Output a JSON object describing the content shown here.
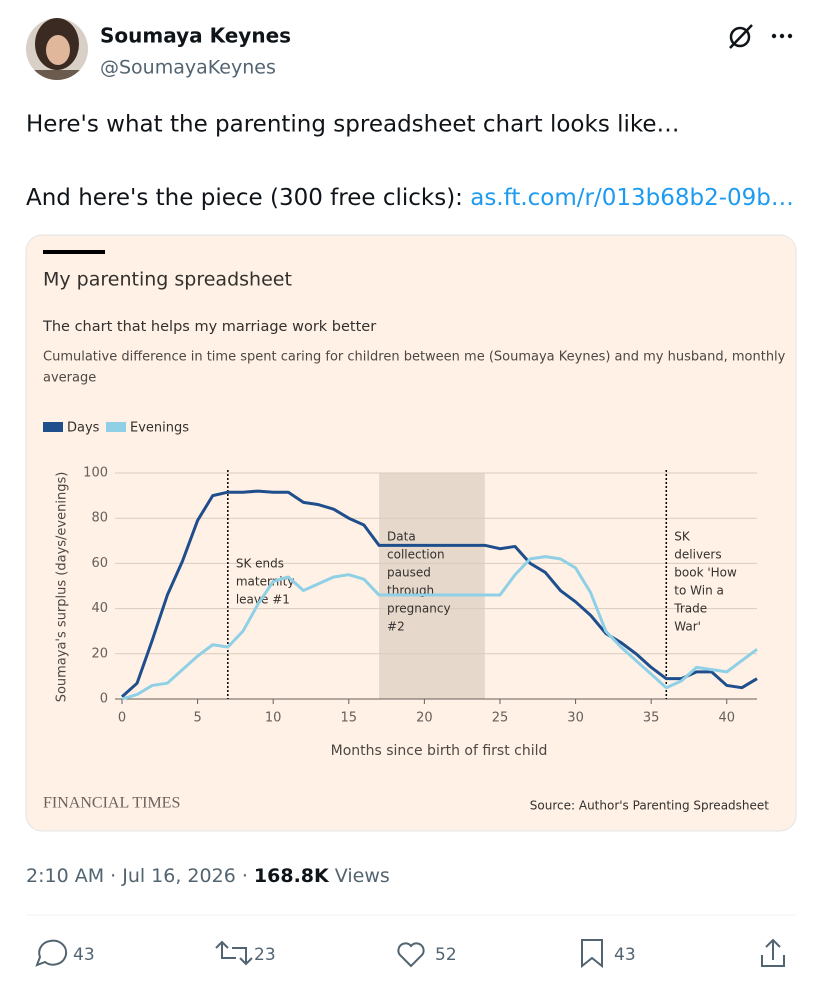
{
  "tweet": {
    "name": "Soumaya Keynes",
    "handle": "@SoumayaKeynes",
    "text_line1": "Here's what the parenting spreadsheet chart looks like…",
    "text_line2": "And here's the piece (300 free clicks): ",
    "link": "as.ft.com/r/013b68b2-09b…",
    "timestamp": "2:10 AM · Jul 16, 2026 ·",
    "views": "168.8K",
    "views_label": "Views",
    "replies": 43,
    "reposts": 23,
    "likes": 52,
    "bookmarks": 43
  },
  "chart_data": {
    "type": "line",
    "title": "My parenting spreadsheet",
    "subtitle": "The chart that helps my marriage work better",
    "description": [
      "Cumulative difference in time spent caring for children between me (Soumaya Keynes) and my husband, monthly",
      "average"
    ],
    "x_label": "Months since birth of first child",
    "y_label": "Soumaya's surplus (days/evenings)",
    "x": [
      0,
      1,
      2,
      3,
      4,
      5,
      6,
      7,
      8,
      9,
      10,
      11,
      12,
      13,
      14,
      15,
      16,
      17,
      18,
      19,
      20,
      21,
      22,
      23,
      24,
      25,
      26,
      27,
      28,
      29,
      30,
      31,
      32,
      33,
      34,
      35,
      36,
      37,
      38,
      39,
      40,
      41,
      42
    ],
    "series": [
      {
        "name": "Days",
        "color": "#1f4e8c",
        "values": [
          1,
          7,
          26,
          46,
          61,
          79,
          90,
          91.5,
          91.5,
          92,
          91.5,
          91.5,
          87,
          86,
          84,
          80,
          77,
          68,
          68,
          68,
          68,
          68,
          68,
          68,
          68,
          66.5,
          67.5,
          60,
          56,
          48,
          43,
          37,
          29,
          25,
          20,
          14,
          9,
          9,
          12,
          12,
          6,
          5,
          9
        ]
      },
      {
        "name": "Evenings",
        "color": "#8fd0e6",
        "values": [
          0,
          2,
          6,
          7,
          13,
          19,
          24,
          23,
          30,
          42,
          52,
          54,
          48,
          51,
          54,
          55,
          53,
          46,
          46,
          46,
          46,
          46,
          46,
          46,
          46,
          46,
          55,
          62,
          63,
          62,
          58,
          47,
          30,
          23,
          17,
          11,
          5,
          8,
          14,
          13,
          12,
          17,
          22
        ]
      }
    ],
    "xlim": [
      0,
      42
    ],
    "ylim": [
      0,
      100
    ],
    "xticks": [
      0,
      5,
      10,
      15,
      20,
      25,
      30,
      35,
      40
    ],
    "yticks": [
      0,
      20,
      40,
      60,
      80,
      100
    ],
    "grid": true,
    "annotations": [
      {
        "x": 7,
        "lines": [
          "SK ends",
          "maternity",
          "leave #1"
        ]
      },
      {
        "x": 36,
        "lines": [
          "SK",
          "delivers",
          "book 'How",
          "to Win a",
          "Trade",
          "War'"
        ]
      }
    ],
    "shaded": {
      "x": [
        17,
        24
      ],
      "lines": [
        "Data",
        "collection",
        "paused",
        "through",
        "pregnancy",
        "#2"
      ]
    },
    "brand": "FINANCIAL TIMES",
    "source": "Source: Author's Parenting Spreadsheet"
  }
}
